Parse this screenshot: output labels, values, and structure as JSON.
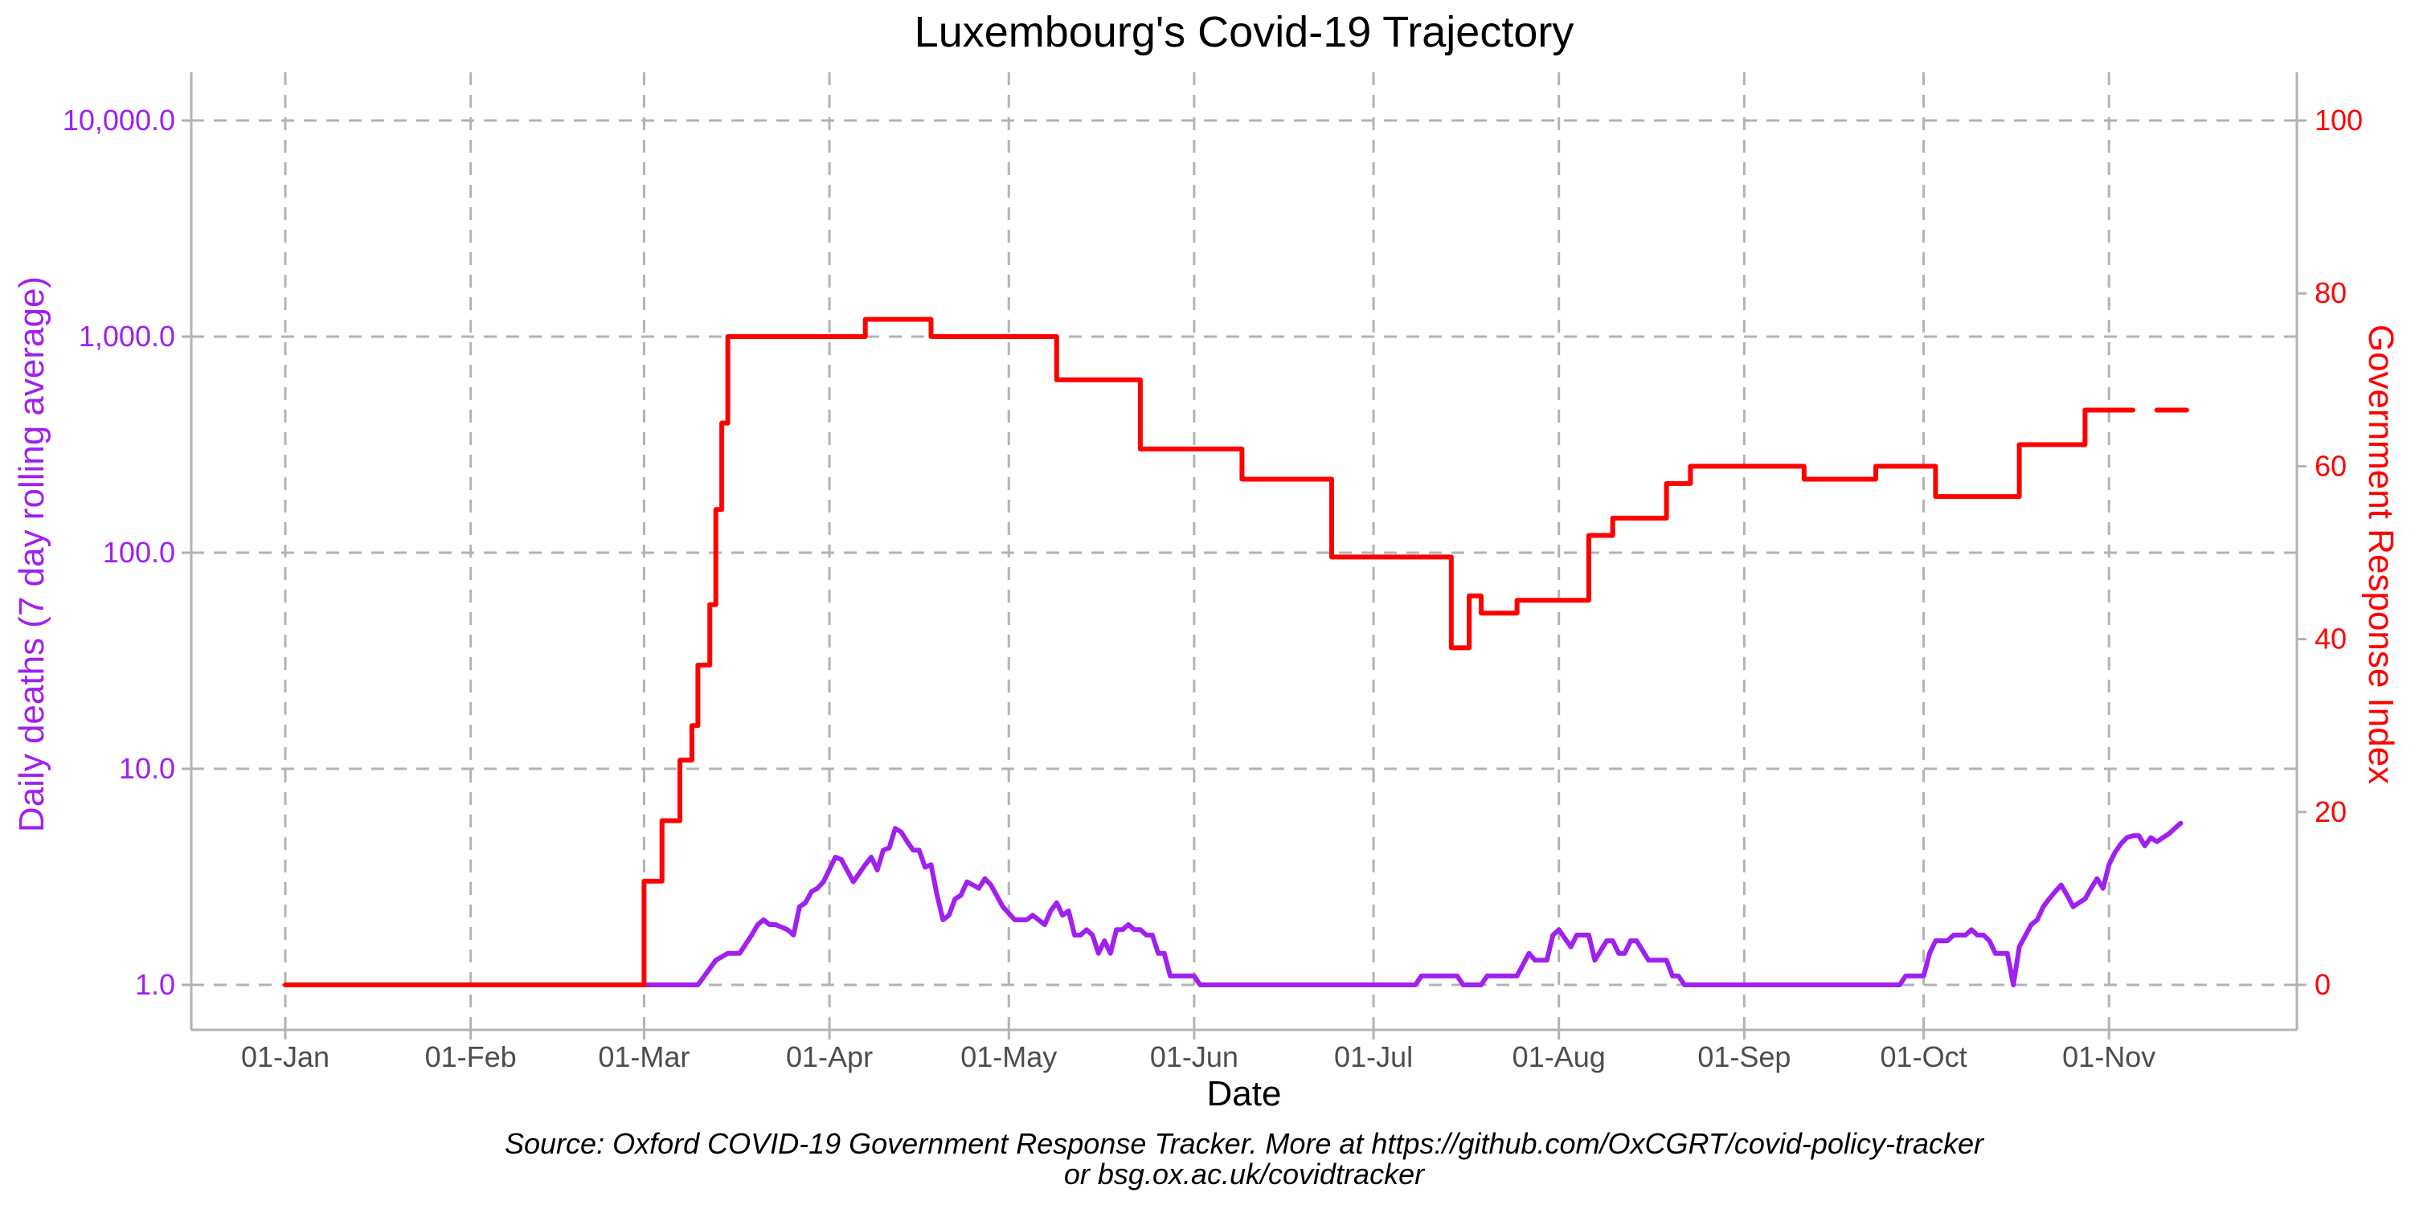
{
  "chart_data": {
    "type": "line",
    "title": "Luxembourg's Covid-19 Trajectory",
    "xlabel": "Date",
    "ylabel_left": "Daily deaths (7 day rolling average)",
    "ylabel_right": "Government Response Index",
    "caption_line1": "Source: Oxford COVID-19 Government Response Tracker. More at https://github.com/OxCGRT/covid-policy-tracker",
    "caption_line2": "or bsg.ox.ac.uk/covidtracker",
    "x_ticks": [
      "01-Jan",
      "01-Feb",
      "01-Mar",
      "01-Apr",
      "01-May",
      "01-Jun",
      "01-Jul",
      "01-Aug",
      "01-Sep",
      "01-Oct",
      "01-Nov"
    ],
    "y_left_ticks": [
      "1.0",
      "10.0",
      "100.0",
      "1,000.0",
      "10,000.0"
    ],
    "y_left_scale": "log10",
    "y_left_lim": [
      1,
      10000
    ],
    "y_right_ticks": [
      "0",
      "20",
      "40",
      "60",
      "80",
      "100"
    ],
    "y_right_lim": [
      0,
      100
    ],
    "x_lim": [
      "2020-01-01",
      "2020-11-14"
    ],
    "grid": true,
    "colors": {
      "deaths": "#a020f0",
      "index": "#ff0000",
      "right_axis": "#ff0000",
      "left_axis": "#a020f0"
    },
    "series": [
      {
        "name": "Daily deaths (7 day rolling average)",
        "axis": "left",
        "color": "#a020f0",
        "points": [
          [
            "2020-03-01",
            1.0
          ],
          [
            "2020-03-10",
            1.0
          ],
          [
            "2020-03-13",
            1.3
          ],
          [
            "2020-03-15",
            1.4
          ],
          [
            "2020-03-17",
            1.4
          ],
          [
            "2020-03-19",
            1.7
          ],
          [
            "2020-03-20",
            1.9
          ],
          [
            "2020-03-21",
            2.0
          ],
          [
            "2020-03-22",
            1.9
          ],
          [
            "2020-03-23",
            1.9
          ],
          [
            "2020-03-25",
            1.8
          ],
          [
            "2020-03-26",
            1.7
          ],
          [
            "2020-03-27",
            2.3
          ],
          [
            "2020-03-28",
            2.4
          ],
          [
            "2020-03-29",
            2.7
          ],
          [
            "2020-03-30",
            2.8
          ],
          [
            "2020-03-31",
            3.0
          ],
          [
            "2020-04-02",
            3.9
          ],
          [
            "2020-04-03",
            3.8
          ],
          [
            "2020-04-05",
            3.0
          ],
          [
            "2020-04-07",
            3.6
          ],
          [
            "2020-04-08",
            3.9
          ],
          [
            "2020-04-09",
            3.4
          ],
          [
            "2020-04-10",
            4.2
          ],
          [
            "2020-04-11",
            4.3
          ],
          [
            "2020-04-12",
            5.3
          ],
          [
            "2020-04-13",
            5.1
          ],
          [
            "2020-04-14",
            4.6
          ],
          [
            "2020-04-15",
            4.2
          ],
          [
            "2020-04-16",
            4.2
          ],
          [
            "2020-04-17",
            3.5
          ],
          [
            "2020-04-18",
            3.6
          ],
          [
            "2020-04-19",
            2.6
          ],
          [
            "2020-04-20",
            2.0
          ],
          [
            "2020-04-21",
            2.1
          ],
          [
            "2020-04-22",
            2.5
          ],
          [
            "2020-04-23",
            2.6
          ],
          [
            "2020-04-24",
            3.0
          ],
          [
            "2020-04-25",
            2.9
          ],
          [
            "2020-04-26",
            2.8
          ],
          [
            "2020-04-27",
            3.1
          ],
          [
            "2020-04-28",
            2.9
          ],
          [
            "2020-04-30",
            2.3
          ],
          [
            "2020-05-02",
            2.0
          ],
          [
            "2020-05-04",
            2.0
          ],
          [
            "2020-05-05",
            2.1
          ],
          [
            "2020-05-07",
            1.9
          ],
          [
            "2020-05-08",
            2.2
          ],
          [
            "2020-05-09",
            2.4
          ],
          [
            "2020-05-10",
            2.1
          ],
          [
            "2020-05-11",
            2.2
          ],
          [
            "2020-05-12",
            1.7
          ],
          [
            "2020-05-13",
            1.7
          ],
          [
            "2020-05-14",
            1.8
          ],
          [
            "2020-05-15",
            1.7
          ],
          [
            "2020-05-16",
            1.4
          ],
          [
            "2020-05-17",
            1.6
          ],
          [
            "2020-05-18",
            1.4
          ],
          [
            "2020-05-19",
            1.8
          ],
          [
            "2020-05-20",
            1.8
          ],
          [
            "2020-05-21",
            1.9
          ],
          [
            "2020-05-22",
            1.8
          ],
          [
            "2020-05-23",
            1.8
          ],
          [
            "2020-05-24",
            1.7
          ],
          [
            "2020-05-25",
            1.7
          ],
          [
            "2020-05-26",
            1.4
          ],
          [
            "2020-05-27",
            1.4
          ],
          [
            "2020-05-28",
            1.1
          ],
          [
            "2020-06-01",
            1.1
          ],
          [
            "2020-06-02",
            1.0
          ],
          [
            "2020-07-08",
            1.0
          ],
          [
            "2020-07-09",
            1.1
          ],
          [
            "2020-07-15",
            1.1
          ],
          [
            "2020-07-16",
            1.0
          ],
          [
            "2020-07-19",
            1.0
          ],
          [
            "2020-07-20",
            1.1
          ],
          [
            "2020-07-25",
            1.1
          ],
          [
            "2020-07-27",
            1.4
          ],
          [
            "2020-07-28",
            1.3
          ],
          [
            "2020-07-30",
            1.3
          ],
          [
            "2020-07-31",
            1.7
          ],
          [
            "2020-08-01",
            1.8
          ],
          [
            "2020-08-03",
            1.5
          ],
          [
            "2020-08-04",
            1.7
          ],
          [
            "2020-08-06",
            1.7
          ],
          [
            "2020-08-07",
            1.3
          ],
          [
            "2020-08-09",
            1.6
          ],
          [
            "2020-08-10",
            1.6
          ],
          [
            "2020-08-11",
            1.4
          ],
          [
            "2020-08-12",
            1.4
          ],
          [
            "2020-08-13",
            1.6
          ],
          [
            "2020-08-14",
            1.6
          ],
          [
            "2020-08-16",
            1.3
          ],
          [
            "2020-08-19",
            1.3
          ],
          [
            "2020-08-20",
            1.1
          ],
          [
            "2020-08-21",
            1.1
          ],
          [
            "2020-08-22",
            1.0
          ],
          [
            "2020-09-27",
            1.0
          ],
          [
            "2020-09-28",
            1.1
          ],
          [
            "2020-10-01",
            1.1
          ],
          [
            "2020-10-02",
            1.4
          ],
          [
            "2020-10-03",
            1.6
          ],
          [
            "2020-10-05",
            1.6
          ],
          [
            "2020-10-06",
            1.7
          ],
          [
            "2020-10-08",
            1.7
          ],
          [
            "2020-10-09",
            1.8
          ],
          [
            "2020-10-10",
            1.7
          ],
          [
            "2020-10-11",
            1.7
          ],
          [
            "2020-10-12",
            1.6
          ],
          [
            "2020-10-13",
            1.4
          ],
          [
            "2020-10-15",
            1.4
          ],
          [
            "2020-10-16",
            1.0
          ],
          [
            "2020-10-17",
            1.5
          ],
          [
            "2020-10-19",
            1.9
          ],
          [
            "2020-10-20",
            2.0
          ],
          [
            "2020-10-21",
            2.3
          ],
          [
            "2020-10-22",
            2.5
          ],
          [
            "2020-10-23",
            2.7
          ],
          [
            "2020-10-24",
            2.9
          ],
          [
            "2020-10-25",
            2.6
          ],
          [
            "2020-10-26",
            2.3
          ],
          [
            "2020-10-27",
            2.4
          ],
          [
            "2020-10-28",
            2.5
          ],
          [
            "2020-10-29",
            2.8
          ],
          [
            "2020-10-30",
            3.1
          ],
          [
            "2020-10-31",
            2.8
          ],
          [
            "2020-11-01",
            3.6
          ],
          [
            "2020-11-02",
            4.1
          ],
          [
            "2020-11-03",
            4.5
          ],
          [
            "2020-11-04",
            4.8
          ],
          [
            "2020-11-05",
            4.9
          ],
          [
            "2020-11-06",
            4.9
          ],
          [
            "2020-11-07",
            4.4
          ],
          [
            "2020-11-08",
            4.8
          ],
          [
            "2020-11-09",
            4.6
          ],
          [
            "2020-11-10",
            4.8
          ],
          [
            "2020-11-11",
            5.0
          ],
          [
            "2020-11-12",
            5.3
          ],
          [
            "2020-11-13",
            5.6
          ]
        ]
      },
      {
        "name": "Government Response Index",
        "axis": "right",
        "color": "#ff0000",
        "step": true,
        "points": [
          [
            "2020-01-01",
            0
          ],
          [
            "2020-02-29",
            0
          ],
          [
            "2020-03-01",
            12
          ],
          [
            "2020-03-04",
            19
          ],
          [
            "2020-03-07",
            26
          ],
          [
            "2020-03-09",
            30
          ],
          [
            "2020-03-10",
            37
          ],
          [
            "2020-03-12",
            44
          ],
          [
            "2020-03-13",
            55
          ],
          [
            "2020-03-14",
            65
          ],
          [
            "2020-03-15",
            75
          ],
          [
            "2020-04-07",
            77
          ],
          [
            "2020-04-18",
            75
          ],
          [
            "2020-05-09",
            70
          ],
          [
            "2020-05-23",
            62
          ],
          [
            "2020-06-09",
            58.5
          ],
          [
            "2020-06-24",
            49.5
          ],
          [
            "2020-07-14",
            39
          ],
          [
            "2020-07-17",
            45
          ],
          [
            "2020-07-19",
            43
          ],
          [
            "2020-07-25",
            44.5
          ],
          [
            "2020-08-06",
            52
          ],
          [
            "2020-08-10",
            54
          ],
          [
            "2020-08-19",
            58
          ],
          [
            "2020-08-23",
            60
          ],
          [
            "2020-09-11",
            58.5
          ],
          [
            "2020-09-23",
            60
          ],
          [
            "2020-10-03",
            56.5
          ],
          [
            "2020-10-17",
            62.5
          ],
          [
            "2020-10-28",
            66.5
          ],
          [
            "2020-11-05",
            66.5
          ]
        ],
        "trailing_segment": [
          [
            "2020-11-09",
            66.5
          ],
          [
            "2020-11-14",
            66.5
          ]
        ]
      }
    ]
  }
}
